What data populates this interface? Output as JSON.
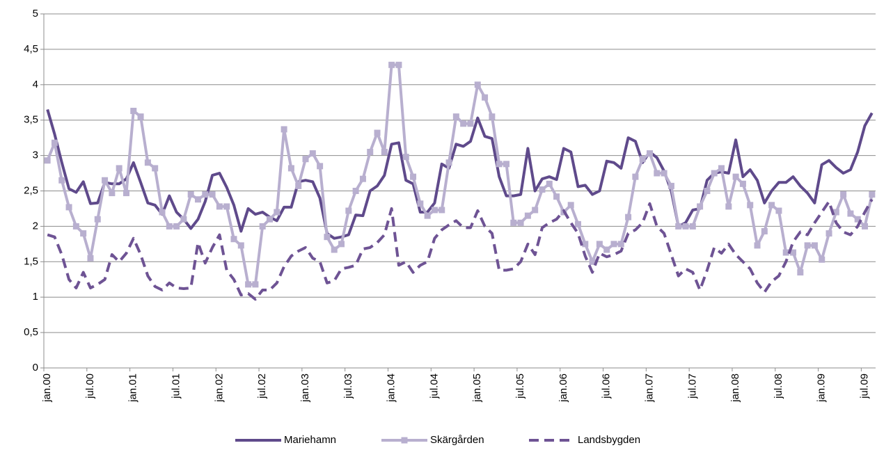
{
  "chart_data": {
    "type": "line",
    "categories": [
      "jan.00",
      null,
      null,
      null,
      null,
      null,
      "jul.00",
      null,
      null,
      null,
      null,
      null,
      "jan.01",
      null,
      null,
      null,
      null,
      null,
      "jul.01",
      null,
      null,
      null,
      null,
      null,
      "jan.02",
      null,
      null,
      null,
      null,
      null,
      "jul.02",
      null,
      null,
      null,
      null,
      null,
      "jan.03",
      null,
      null,
      null,
      null,
      null,
      "jul.03",
      null,
      null,
      null,
      null,
      null,
      "jan.04",
      null,
      null,
      null,
      null,
      null,
      "jul.04",
      null,
      null,
      null,
      null,
      null,
      "jan.05",
      null,
      null,
      null,
      null,
      null,
      "jul.05",
      null,
      null,
      null,
      null,
      null,
      "jan.06",
      null,
      null,
      null,
      null,
      null,
      "jul.06",
      null,
      null,
      null,
      null,
      null,
      "jan.07",
      null,
      null,
      null,
      null,
      null,
      "jul.07",
      null,
      null,
      null,
      null,
      null,
      "jan.08",
      null,
      null,
      null,
      null,
      null,
      "jul.08",
      null,
      null,
      null,
      null,
      null,
      "jan.09",
      null,
      null,
      null,
      null,
      null,
      "jul.09",
      null
    ],
    "series": [
      {
        "name": "Mariehamn",
        "color": "#5f4a8b",
        "dash": false,
        "marker": null,
        "values": [
          3.65,
          3.3,
          2.9,
          2.53,
          2.48,
          2.63,
          2.32,
          2.33,
          2.62,
          2.6,
          2.6,
          2.67,
          2.9,
          2.62,
          2.33,
          2.3,
          2.17,
          2.43,
          2.2,
          2.1,
          1.97,
          2.1,
          2.35,
          2.72,
          2.75,
          2.55,
          2.3,
          1.93,
          2.25,
          2.17,
          2.2,
          2.13,
          2.08,
          2.27,
          2.27,
          2.63,
          2.65,
          2.63,
          2.4,
          1.9,
          1.83,
          1.85,
          1.88,
          2.16,
          2.15,
          2.5,
          2.57,
          2.72,
          3.16,
          3.18,
          2.65,
          2.6,
          2.2,
          2.2,
          2.33,
          2.88,
          2.82,
          3.16,
          3.13,
          3.2,
          3.53,
          3.27,
          3.24,
          2.7,
          2.43,
          2.43,
          2.45,
          3.1,
          2.5,
          2.67,
          2.7,
          2.66,
          3.1,
          3.05,
          2.56,
          2.58,
          2.45,
          2.5,
          2.92,
          2.9,
          2.82,
          3.25,
          3.2,
          2.9,
          3.05,
          2.97,
          2.78,
          2.5,
          2.0,
          2.05,
          2.23,
          2.25,
          2.65,
          2.75,
          2.77,
          2.75,
          3.22,
          2.7,
          2.8,
          2.65,
          2.33,
          2.5,
          2.62,
          2.62,
          2.7,
          2.57,
          2.47,
          2.33,
          2.87,
          2.93,
          2.83,
          2.75,
          2.8,
          3.05,
          3.42,
          3.6
        ]
      },
      {
        "name": "Skärgården",
        "color": "#b8afcf",
        "dash": false,
        "marker": "square",
        "values": [
          2.93,
          3.18,
          2.65,
          2.27,
          2.0,
          1.9,
          1.55,
          2.1,
          2.65,
          2.47,
          2.82,
          2.47,
          3.63,
          3.55,
          2.9,
          2.82,
          2.2,
          2.0,
          2.0,
          2.1,
          2.45,
          2.38,
          2.45,
          2.45,
          2.28,
          2.28,
          1.82,
          1.73,
          1.18,
          1.18,
          2.0,
          2.1,
          2.2,
          3.37,
          2.82,
          2.57,
          2.95,
          3.03,
          2.85,
          1.85,
          1.67,
          1.75,
          2.22,
          2.5,
          2.67,
          3.05,
          3.32,
          3.05,
          4.28,
          4.28,
          2.98,
          2.7,
          2.32,
          2.15,
          2.23,
          2.23,
          2.9,
          3.55,
          3.45,
          3.45,
          4.0,
          3.82,
          3.55,
          2.88,
          2.88,
          2.05,
          2.05,
          2.15,
          2.23,
          2.52,
          2.6,
          2.42,
          2.2,
          2.3,
          2.03,
          1.75,
          1.5,
          1.75,
          1.67,
          1.75,
          1.75,
          2.13,
          2.7,
          2.95,
          3.03,
          2.75,
          2.75,
          2.57,
          2.0,
          2.0,
          2.0,
          2.28,
          2.5,
          2.75,
          2.82,
          2.28,
          2.7,
          2.6,
          2.3,
          1.73,
          1.93,
          2.3,
          2.22,
          1.63,
          1.63,
          1.35,
          1.73,
          1.73,
          1.53,
          1.9,
          2.2,
          2.45,
          2.18,
          2.1,
          2.0,
          2.45
        ]
      },
      {
        "name": "Landsbygden",
        "color": "#6e5394",
        "dash": true,
        "marker": null,
        "values": [
          1.88,
          1.85,
          1.6,
          1.25,
          1.13,
          1.35,
          1.13,
          1.18,
          1.25,
          1.6,
          1.5,
          1.62,
          1.83,
          1.6,
          1.3,
          1.15,
          1.1,
          1.2,
          1.13,
          1.12,
          1.13,
          1.77,
          1.48,
          1.7,
          1.88,
          1.38,
          1.25,
          1.03,
          1.05,
          0.97,
          1.1,
          1.1,
          1.2,
          1.43,
          1.58,
          1.65,
          1.7,
          1.55,
          1.5,
          1.2,
          1.23,
          1.4,
          1.42,
          1.45,
          1.68,
          1.7,
          1.77,
          1.88,
          2.25,
          1.45,
          1.5,
          1.35,
          1.45,
          1.5,
          1.83,
          1.95,
          2.02,
          2.08,
          1.98,
          1.98,
          2.22,
          2.0,
          1.9,
          1.38,
          1.38,
          1.4,
          1.5,
          1.75,
          1.6,
          1.98,
          2.05,
          2.1,
          2.22,
          2.05,
          1.9,
          1.58,
          1.35,
          1.62,
          1.57,
          1.6,
          1.65,
          1.9,
          1.95,
          2.05,
          2.32,
          2.0,
          1.9,
          1.6,
          1.3,
          1.4,
          1.35,
          1.1,
          1.38,
          1.7,
          1.62,
          1.75,
          1.6,
          1.5,
          1.4,
          1.2,
          1.07,
          1.22,
          1.3,
          1.5,
          1.78,
          1.92,
          1.88,
          2.05,
          2.2,
          2.35,
          2.05,
          1.92,
          1.88,
          2.0,
          2.2,
          2.38
        ]
      }
    ],
    "ylim": [
      0,
      5
    ],
    "yticks": [
      0,
      {
        "value": 0.5,
        "label": "0,5"
      },
      1,
      {
        "value": 1.5,
        "label": "1,5"
      },
      2,
      {
        "value": 2.5,
        "label": "2,5"
      },
      3,
      {
        "value": 3.5,
        "label": "3,5"
      },
      4,
      {
        "value": 4.5,
        "label": "4,5"
      },
      5
    ],
    "grid": true,
    "legend": "bottom"
  }
}
